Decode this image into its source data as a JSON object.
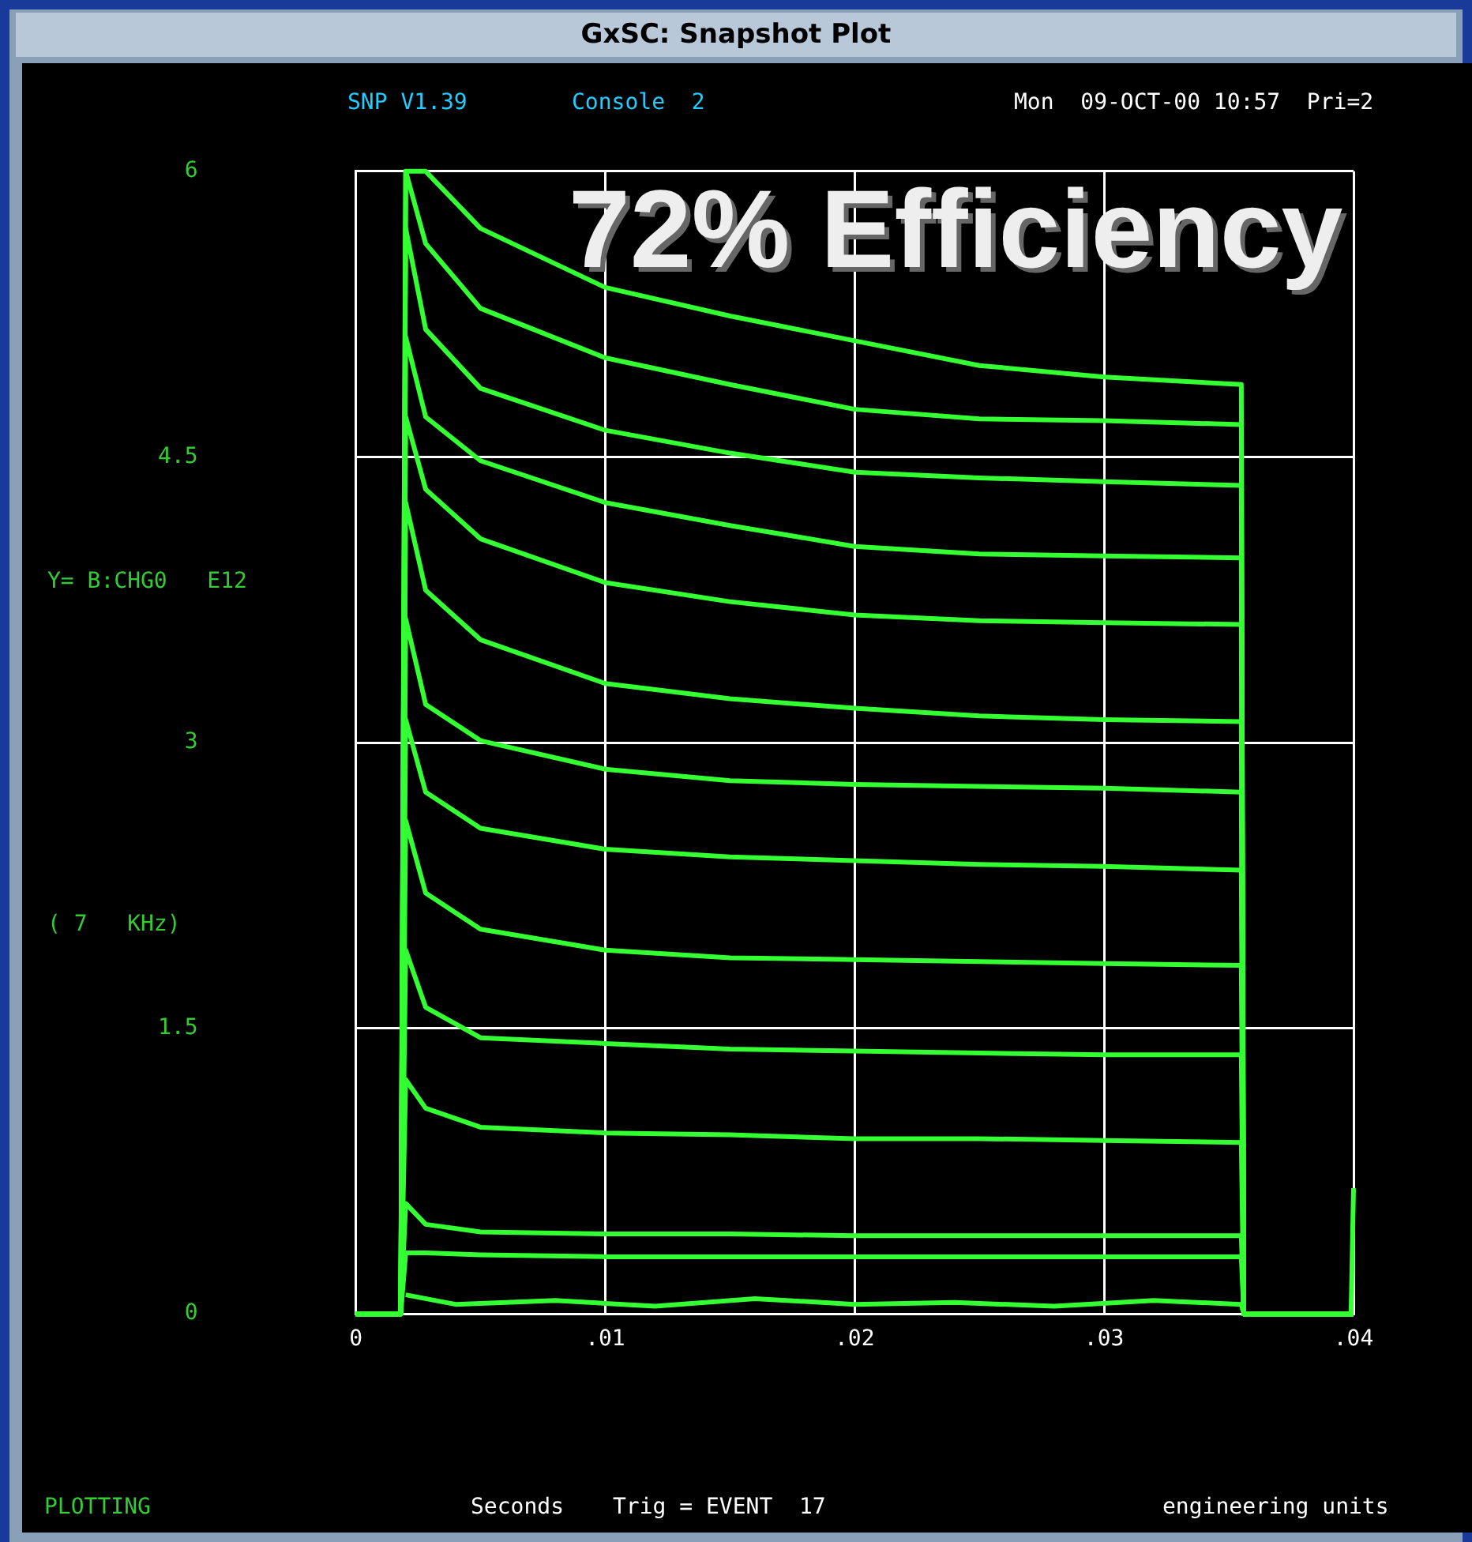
{
  "chart_data": {
    "type": "line",
    "title": "GxSC: Snapshot Plot",
    "ylabel": "Y= B:CHG0   E12",
    "annotations": [
      "SNP V1.39",
      "Console  2",
      "Mon  09-OCT-00 10:57  Pri=2",
      "( 7   KHz)",
      "PLOTTING",
      "Trig = EVENT  17",
      "engineering units",
      "72% Efficiency",
      "Seconds"
    ],
    "xlim": [
      0,
      0.04
    ],
    "xticks": [
      0,
      {
        "value": 0.01,
        "label": ".01"
      },
      {
        "value": 0.02,
        "label": ".02"
      },
      {
        "value": 0.03,
        "label": ".03"
      },
      {
        "value": 0.04,
        "label": ".04"
      }
    ],
    "ylim": [
      0,
      6
    ],
    "yticks": [
      0,
      1.5,
      3,
      4.5,
      6
    ],
    "grid": true,
    "legend": false,
    "marker": "none",
    "x": [
      0,
      0.0018,
      0.002,
      0.0028,
      0.005,
      0.01,
      0.015,
      0.02,
      0.025,
      0.03,
      0.0355,
      0.0356,
      0.04
    ],
    "series": [
      {
        "color": "#33ff33",
        "values": [
          0,
          0,
          6.0,
          6.0,
          5.7,
          5.39,
          5.24,
          5.11,
          4.98,
          4.92,
          4.88,
          0,
          0
        ]
      },
      {
        "color": "#33ff33",
        "values": [
          0,
          0,
          6.0,
          5.62,
          5.28,
          5.02,
          4.88,
          4.75,
          4.7,
          4.69,
          4.67,
          0,
          0
        ]
      },
      {
        "color": "#33ff33",
        "values": [
          0,
          0,
          5.7,
          5.17,
          4.86,
          4.64,
          4.52,
          4.42,
          4.39,
          4.37,
          4.35,
          0,
          0
        ]
      },
      {
        "color": "#33ff33",
        "values": [
          0,
          0,
          5.13,
          4.71,
          4.48,
          4.26,
          4.14,
          4.03,
          3.99,
          3.98,
          3.97,
          0,
          0
        ]
      },
      {
        "color": "#33ff33",
        "values": [
          0,
          0,
          4.71,
          4.33,
          4.07,
          3.84,
          3.74,
          3.67,
          3.64,
          3.63,
          3.62,
          0,
          0
        ]
      },
      {
        "color": "#33ff33",
        "values": [
          0,
          0,
          4.26,
          3.8,
          3.54,
          3.31,
          3.23,
          3.18,
          3.14,
          3.12,
          3.11,
          0,
          0
        ]
      },
      {
        "color": "#33ff33",
        "values": [
          0,
          0,
          3.65,
          3.2,
          3.01,
          2.86,
          2.8,
          2.78,
          2.77,
          2.76,
          2.74,
          0,
          0
        ]
      },
      {
        "color": "#33ff33",
        "values": [
          0,
          0,
          3.12,
          2.74,
          2.55,
          2.44,
          2.4,
          2.38,
          2.36,
          2.35,
          2.33,
          0,
          0
        ]
      },
      {
        "color": "#33ff33",
        "values": [
          0,
          0,
          2.59,
          2.21,
          2.02,
          1.91,
          1.87,
          1.86,
          1.85,
          1.84,
          1.83,
          0,
          0
        ]
      },
      {
        "color": "#33ff33",
        "values": [
          0,
          0,
          1.91,
          1.61,
          1.45,
          1.42,
          1.39,
          1.38,
          1.37,
          1.36,
          1.36,
          0,
          0
        ]
      },
      {
        "color": "#33ff33",
        "values": [
          0,
          0,
          1.23,
          1.08,
          0.98,
          0.95,
          0.94,
          0.92,
          0.92,
          0.91,
          0.9,
          0,
          0
        ]
      },
      {
        "color": "#33ff33",
        "values": [
          0,
          0,
          0.58,
          0.47,
          0.43,
          0.42,
          0.42,
          0.41,
          0.41,
          0.41,
          0.41,
          0,
          0
        ]
      },
      {
        "color": "#33ff33",
        "values": [
          0,
          0,
          0.32,
          0.32,
          0.31,
          0.3,
          0.3,
          0.3,
          0.3,
          0.3,
          0.3,
          0,
          0
        ]
      },
      {
        "color": "#33ff33",
        "x": [
          0.002,
          0.004,
          0.008,
          0.012,
          0.016,
          0.02,
          0.024,
          0.028,
          0.032,
          0.0355,
          0.0356,
          0.0399,
          0.04
        ],
        "values": [
          0.1,
          0.05,
          0.07,
          0.04,
          0.08,
          0.05,
          0.06,
          0.04,
          0.07,
          0.05,
          0,
          0,
          0.66
        ]
      }
    ]
  }
}
